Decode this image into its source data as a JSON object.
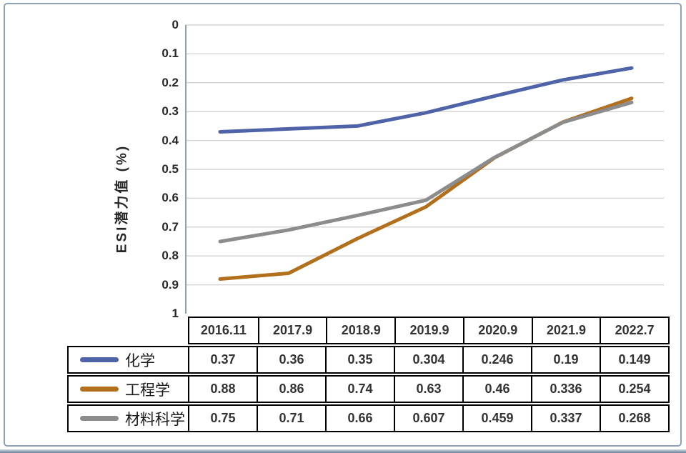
{
  "chart": {
    "y_axis_title": "ESI潜力值 (%)",
    "y_ticks": [
      "0",
      "0.1",
      "0.2",
      "0.3",
      "0.4",
      "0.5",
      "0.6",
      "0.7",
      "0.8",
      "0.9",
      "1"
    ],
    "colors": {
      "grid": "#d6d6d6",
      "axis_line": "#8da0b3",
      "frame_border": "#8ea2b6",
      "table_border": "#000000",
      "text": "#262626"
    }
  },
  "chart_data": {
    "type": "line",
    "title": "",
    "xlabel": "",
    "ylabel": "ESI潜力值 (%)",
    "ylim": [
      0,
      1
    ],
    "y_axis_reversed": true,
    "grid": true,
    "legend_position": "data-table-left",
    "categories": [
      "2016.11",
      "2017.9",
      "2018.9",
      "2019.9",
      "2020.9",
      "2021.9",
      "2022.7"
    ],
    "series": [
      {
        "name": "化学",
        "color": "#4f63a8",
        "values": [
          0.37,
          0.36,
          0.35,
          0.304,
          0.246,
          0.19,
          0.149
        ]
      },
      {
        "name": "工程学",
        "color": "#b2701d",
        "values": [
          0.88,
          0.86,
          0.74,
          0.63,
          0.46,
          0.336,
          0.254
        ]
      },
      {
        "name": "材料科学",
        "color": "#8c8c8c",
        "values": [
          0.75,
          0.71,
          0.66,
          0.607,
          0.459,
          0.337,
          0.268
        ]
      }
    ]
  }
}
